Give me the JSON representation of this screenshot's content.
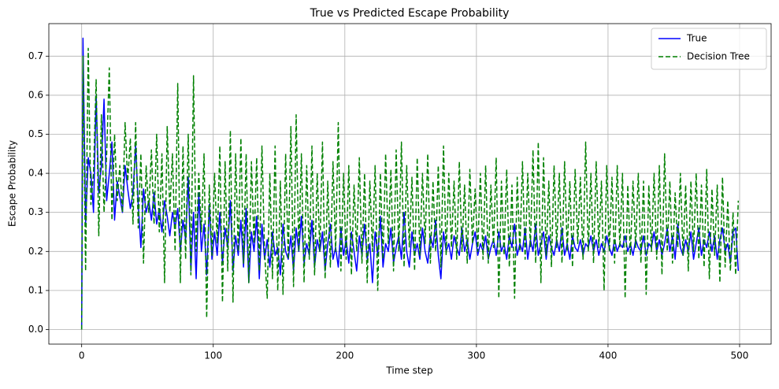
{
  "chart_data": {
    "type": "line",
    "title": "True vs Predicted Escape Probability",
    "xlabel": "Time step",
    "ylabel": "Escape Probability",
    "x": [
      0,
      1,
      3,
      5,
      7,
      9,
      11,
      13,
      15,
      17,
      19,
      21,
      23,
      25,
      27,
      29,
      31,
      33,
      35,
      37,
      39,
      41,
      43,
      45,
      47,
      49,
      51,
      53,
      55,
      57,
      59,
      61,
      63,
      65,
      67,
      69,
      71,
      73,
      75,
      77,
      79,
      81,
      83,
      85,
      87,
      89,
      91,
      93,
      95,
      97,
      99,
      101,
      103,
      105,
      107,
      109,
      111,
      113,
      115,
      117,
      119,
      121,
      123,
      125,
      127,
      129,
      131,
      133,
      135,
      137,
      139,
      141,
      143,
      145,
      147,
      149,
      151,
      153,
      155,
      157,
      159,
      161,
      163,
      165,
      167,
      169,
      171,
      173,
      175,
      177,
      179,
      181,
      183,
      185,
      187,
      189,
      191,
      193,
      195,
      197,
      199,
      201,
      203,
      205,
      207,
      209,
      211,
      213,
      215,
      217,
      219,
      221,
      223,
      225,
      227,
      229,
      231,
      233,
      235,
      237,
      239,
      241,
      243,
      245,
      247,
      249,
      251,
      253,
      255,
      257,
      259,
      261,
      263,
      265,
      267,
      269,
      271,
      273,
      275,
      277,
      279,
      281,
      283,
      285,
      287,
      289,
      291,
      293,
      295,
      297,
      299,
      301,
      303,
      305,
      307,
      309,
      311,
      313,
      315,
      317,
      319,
      321,
      323,
      325,
      327,
      329,
      331,
      333,
      335,
      337,
      339,
      341,
      343,
      345,
      347,
      349,
      351,
      353,
      355,
      357,
      359,
      361,
      363,
      365,
      367,
      369,
      371,
      373,
      375,
      377,
      379,
      381,
      383,
      385,
      387,
      389,
      391,
      393,
      395,
      397,
      399,
      401,
      403,
      405,
      407,
      409,
      411,
      413,
      415,
      417,
      419,
      421,
      423,
      425,
      427,
      429,
      431,
      433,
      435,
      437,
      439,
      441,
      443,
      445,
      447,
      449,
      451,
      453,
      455,
      457,
      459,
      461,
      463,
      465,
      467,
      469,
      471,
      473,
      475,
      477,
      479,
      481,
      483,
      485,
      487,
      489,
      491,
      493,
      495,
      497,
      499
    ],
    "series": [
      {
        "name": "True",
        "color": "#0000ff",
        "linestyle": "solid",
        "values": [
          0,
          0.746,
          0.27,
          0.44,
          0.4,
          0.3,
          0.6,
          0.35,
          0.42,
          0.59,
          0.33,
          0.4,
          0.48,
          0.28,
          0.38,
          0.34,
          0.3,
          0.42,
          0.36,
          0.31,
          0.35,
          0.47,
          0.32,
          0.21,
          0.36,
          0.3,
          0.33,
          0.28,
          0.35,
          0.27,
          0.31,
          0.25,
          0.33,
          0.29,
          0.24,
          0.3,
          0.26,
          0.31,
          0.2,
          0.28,
          0.23,
          0.39,
          0.15,
          0.3,
          0.13,
          0.35,
          0.2,
          0.27,
          0.14,
          0.32,
          0.18,
          0.25,
          0.19,
          0.3,
          0.17,
          0.26,
          0.21,
          0.33,
          0.15,
          0.24,
          0.19,
          0.28,
          0.16,
          0.31,
          0.12,
          0.25,
          0.2,
          0.29,
          0.13,
          0.27,
          0.18,
          0.23,
          0.16,
          0.25,
          0.19,
          0.21,
          0.14,
          0.27,
          0.2,
          0.18,
          0.24,
          0.15,
          0.26,
          0.2,
          0.29,
          0.17,
          0.22,
          0.19,
          0.28,
          0.16,
          0.23,
          0.2,
          0.25,
          0.15,
          0.22,
          0.27,
          0.18,
          0.21,
          0.16,
          0.26,
          0.19,
          0.23,
          0.17,
          0.25,
          0.2,
          0.15,
          0.24,
          0.19,
          0.27,
          0.18,
          0.22,
          0.12,
          0.25,
          0.19,
          0.29,
          0.16,
          0.22,
          0.2,
          0.26,
          0.17,
          0.21,
          0.24,
          0.18,
          0.3,
          0.2,
          0.16,
          0.25,
          0.19,
          0.22,
          0.18,
          0.26,
          0.2,
          0.17,
          0.24,
          0.21,
          0.28,
          0.19,
          0.13,
          0.25,
          0.2,
          0.22,
          0.18,
          0.24,
          0.21,
          0.19,
          0.26,
          0.2,
          0.23,
          0.18,
          0.22,
          0.25,
          0.19,
          0.22,
          0.2,
          0.24,
          0.18,
          0.21,
          0.23,
          0.19,
          0.25,
          0.2,
          0.22,
          0.18,
          0.24,
          0.21,
          0.27,
          0.19,
          0.22,
          0.2,
          0.26,
          0.18,
          0.23,
          0.2,
          0.27,
          0.19,
          0.22,
          0.25,
          0.18,
          0.24,
          0.21,
          0.19,
          0.23,
          0.2,
          0.26,
          0.19,
          0.22,
          0.18,
          0.24,
          0.21,
          0.2,
          0.23,
          0.19,
          0.22,
          0.21,
          0.24,
          0.2,
          0.23,
          0.19,
          0.22,
          0.2,
          0.24,
          0.21,
          0.19,
          0.23,
          0.2,
          0.22,
          0.21,
          0.24,
          0.2,
          0.22,
          0.19,
          0.23,
          0.21,
          0.2,
          0.24,
          0.19,
          0.22,
          0.21,
          0.25,
          0.2,
          0.23,
          0.19,
          0.22,
          0.26,
          0.2,
          0.24,
          0.18,
          0.27,
          0.21,
          0.19,
          0.23,
          0.2,
          0.25,
          0.18,
          0.22,
          0.26,
          0.19,
          0.23,
          0.21,
          0.25,
          0.2,
          0.24,
          0.18,
          0.23,
          0.26,
          0.2,
          0.22,
          0.17,
          0.25,
          0.26,
          0.15
        ]
      },
      {
        "name": "Decision Tree",
        "color": "#008000",
        "linestyle": "dashed",
        "values": [
          0,
          0.7,
          0.15,
          0.72,
          0.32,
          0.4,
          0.64,
          0.24,
          0.55,
          0.3,
          0.45,
          0.67,
          0.28,
          0.5,
          0.33,
          0.42,
          0.3,
          0.53,
          0.38,
          0.49,
          0.27,
          0.53,
          0.26,
          0.45,
          0.17,
          0.42,
          0.3,
          0.46,
          0.27,
          0.5,
          0.25,
          0.45,
          0.12,
          0.52,
          0.3,
          0.45,
          0.2,
          0.63,
          0.12,
          0.47,
          0.18,
          0.5,
          0.14,
          0.65,
          0.2,
          0.4,
          0.25,
          0.45,
          0.03,
          0.37,
          0.19,
          0.4,
          0.22,
          0.47,
          0.07,
          0.43,
          0.15,
          0.51,
          0.07,
          0.45,
          0.2,
          0.49,
          0.17,
          0.45,
          0.12,
          0.43,
          0.22,
          0.44,
          0.15,
          0.47,
          0.2,
          0.08,
          0.4,
          0.13,
          0.47,
          0.1,
          0.38,
          0.09,
          0.45,
          0.18,
          0.52,
          0.11,
          0.55,
          0.2,
          0.45,
          0.12,
          0.42,
          0.18,
          0.47,
          0.14,
          0.4,
          0.2,
          0.48,
          0.13,
          0.38,
          0.16,
          0.43,
          0.2,
          0.53,
          0.15,
          0.4,
          0.18,
          0.42,
          0.14,
          0.37,
          0.2,
          0.44,
          0.17,
          0.4,
          0.12,
          0.38,
          0.2,
          0.42,
          0.1,
          0.4,
          0.18,
          0.45,
          0.22,
          0.41,
          0.15,
          0.46,
          0.2,
          0.48,
          0.16,
          0.42,
          0.21,
          0.39,
          0.15,
          0.44,
          0.19,
          0.4,
          0.22,
          0.45,
          0.17,
          0.38,
          0.2,
          0.42,
          0.16,
          0.47,
          0.19,
          0.4,
          0.21,
          0.38,
          0.18,
          0.43,
          0.2,
          0.37,
          0.17,
          0.41,
          0.22,
          0.36,
          0.2,
          0.4,
          0.18,
          0.42,
          0.17,
          0.37,
          0.21,
          0.44,
          0.08,
          0.38,
          0.19,
          0.41,
          0.16,
          0.37,
          0.08,
          0.39,
          0.2,
          0.43,
          0.18,
          0.4,
          0.21,
          0.46,
          0.17,
          0.48,
          0.12,
          0.44,
          0.19,
          0.38,
          0.16,
          0.42,
          0.21,
          0.4,
          0.17,
          0.43,
          0.2,
          0.38,
          0.16,
          0.41,
          0.22,
          0.39,
          0.18,
          0.48,
          0.2,
          0.4,
          0.17,
          0.43,
          0.21,
          0.38,
          0.1,
          0.42,
          0.2,
          0.39,
          0.17,
          0.42,
          0.21,
          0.4,
          0.08,
          0.37,
          0.19,
          0.38,
          0.21,
          0.4,
          0.17,
          0.38,
          0.09,
          0.37,
          0.2,
          0.4,
          0.18,
          0.42,
          0.14,
          0.45,
          0.2,
          0.38,
          0.17,
          0.35,
          0.21,
          0.4,
          0.19,
          0.37,
          0.15,
          0.38,
          0.2,
          0.4,
          0.18,
          0.37,
          0.16,
          0.41,
          0.13,
          0.36,
          0.19,
          0.37,
          0.12,
          0.39,
          0.16,
          0.33,
          0.15,
          0.3,
          0.14,
          0.33
        ]
      }
    ],
    "xlim": [
      -24.95,
      523.95
    ],
    "ylim": [
      -0.0373,
      0.7833
    ],
    "xticks": [
      0,
      100,
      200,
      300,
      400,
      500
    ],
    "yticks": [
      {
        "value": 0,
        "label": "0.0"
      },
      0.1,
      0.2,
      0.3,
      0.4,
      0.5,
      0.6,
      0.7
    ],
    "grid": true,
    "legend": "upper right"
  }
}
